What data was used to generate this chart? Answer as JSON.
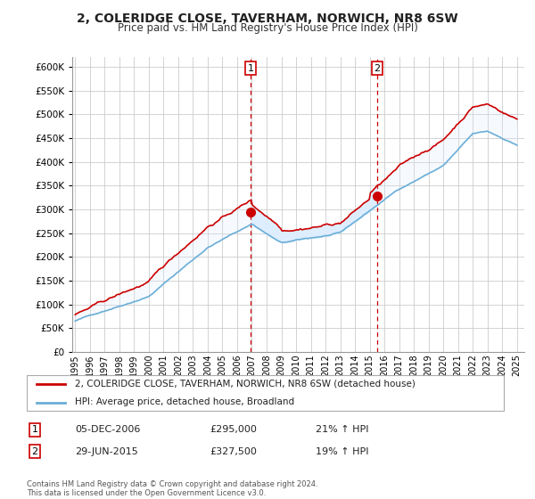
{
  "title": "2, COLERIDGE CLOSE, TAVERHAM, NORWICH, NR8 6SW",
  "subtitle": "Price paid vs. HM Land Registry's House Price Index (HPI)",
  "legend_line1": "2, COLERIDGE CLOSE, TAVERHAM, NORWICH, NR8 6SW (detached house)",
  "legend_line2": "HPI: Average price, detached house, Broadland",
  "transaction1_date": "05-DEC-2006",
  "transaction1_price": "£295,000",
  "transaction1_hpi": "21% ↑ HPI",
  "transaction2_date": "29-JUN-2015",
  "transaction2_price": "£327,500",
  "transaction2_hpi": "19% ↑ HPI",
  "footnote": "Contains HM Land Registry data © Crown copyright and database right 2024.\nThis data is licensed under the Open Government Licence v3.0.",
  "ylim": [
    0,
    620000
  ],
  "yticks": [
    0,
    50000,
    100000,
    150000,
    200000,
    250000,
    300000,
    350000,
    400000,
    450000,
    500000,
    550000,
    600000
  ],
  "hpi_color": "#6baed6",
  "price_color": "#cc0000",
  "dot_color": "#cc0000",
  "shade_color": "#ddeeff",
  "vline_color": "#cc0000",
  "grid_color": "#cccccc",
  "transaction1_x": 2006.92,
  "transaction1_y": 295000,
  "transaction2_x": 2015.5,
  "transaction2_y": 327500,
  "xlim_left": 1994.8,
  "xlim_right": 2025.5
}
